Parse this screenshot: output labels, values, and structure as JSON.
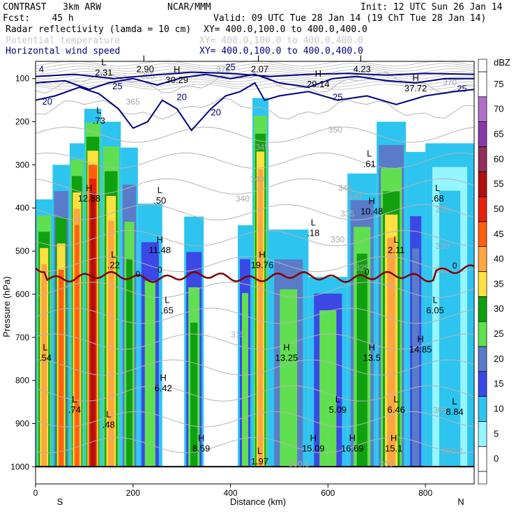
{
  "header": {
    "project": "CONTRAST",
    "model": "3km ARW",
    "org": "NCAR/MMM",
    "init": "Init: 12 UTC Sun 26 Jan 14",
    "fcst_label": "Fcst:",
    "fcst_value": "45 h",
    "valid": "Valid: 09 UTC Tue 28 Jan 14 (19 ChT Tue 28 Jan 14)",
    "fields": [
      {
        "name": "Radar reflectivity (lamda = 10 cm)",
        "xy": "XY= 400.0,100.0 to 400.0,400.0",
        "color": "#000000"
      },
      {
        "name": "Potential temperature",
        "xy": "XY= 400.0,100.0 to 400.0,400.0",
        "color": "#c8c8c8"
      },
      {
        "name": "Horizontal wind speed",
        "xy": "XY= 400.0,100.0 to 400.0,400.0",
        "color": "#000080"
      }
    ]
  },
  "chart_data": {
    "type": "cross-section",
    "title": "CONTRAST 3km ARW cross section",
    "xlabel": "Distance (km)",
    "ylabel": "Pressure (hPa)",
    "xlim": [
      0,
      900
    ],
    "ylim": [
      1040,
      60
    ],
    "x_ticks": [
      0,
      200,
      400,
      600,
      800
    ],
    "y_ticks": [
      100,
      200,
      300,
      400,
      500,
      600,
      700,
      800,
      900,
      1000
    ],
    "x_left_label": "S",
    "x_right_label": "N",
    "colorbar": {
      "unit": "dBZ",
      "levels": [
        0,
        5,
        10,
        15,
        20,
        25,
        30,
        35,
        40,
        45,
        50,
        55,
        60,
        65,
        70,
        75
      ],
      "colors": [
        "#ffffff",
        "#96f5ff",
        "#2ec4f0",
        "#3c48e6",
        "#5a7cc8",
        "#60e050",
        "#10a010",
        "#ffe040",
        "#ffa640",
        "#ff6010",
        "#e82010",
        "#b01010",
        "#90305a",
        "#8a3aa8",
        "#b070c8",
        "#ffffff"
      ]
    },
    "freezing_level_label": "0",
    "theta_contours": [
      {
        "label": "350",
        "x": 615,
        "p": 225
      },
      {
        "label": "345",
        "x": 635,
        "p": 360
      },
      {
        "label": "345",
        "x": 465,
        "p": 265
      },
      {
        "label": "340",
        "x": 455,
        "p": 340
      },
      {
        "label": "340",
        "x": 655,
        "p": 380
      },
      {
        "label": "340",
        "x": 425,
        "p": 385
      },
      {
        "label": "335",
        "x": 640,
        "p": 420
      },
      {
        "label": "335",
        "x": 835,
        "p": 410
      },
      {
        "label": "330",
        "x": 620,
        "p": 480
      },
      {
        "label": "330",
        "x": 835,
        "p": 495
      },
      {
        "label": "325",
        "x": 670,
        "p": 545
      },
      {
        "label": "325",
        "x": 835,
        "p": 550
      },
      {
        "label": "315",
        "x": 415,
        "p": 700
      },
      {
        "label": "305",
        "x": 830,
        "p": 875
      },
      {
        "label": "300.6",
        "x": 540,
        "p": 1000
      },
      {
        "label": "300",
        "x": 720,
        "p": 1000
      },
      {
        "label": "300.2",
        "x": 855,
        "p": 970
      },
      {
        "label": "365",
        "x": 200,
        "p": 160
      },
      {
        "label": "365",
        "x": 230,
        "p": 100
      },
      {
        "label": "375",
        "x": 385,
        "p": 85
      },
      {
        "label": "370",
        "x": 850,
        "p": 115
      }
    ],
    "wind_contours": [
      {
        "label": "20",
        "x": 24,
        "p": 160
      },
      {
        "label": "25",
        "x": 168,
        "p": 125
      },
      {
        "label": "20",
        "x": 300,
        "p": 150
      },
      {
        "label": "20",
        "x": 370,
        "p": 185
      },
      {
        "label": "25",
        "x": 400,
        "p": 80
      },
      {
        "label": "25",
        "x": 620,
        "p": 150
      },
      {
        "label": "25",
        "x": 875,
        "p": 130
      },
      {
        "label": "4",
        "x": 12,
        "p": 85
      }
    ],
    "extrema": [
      {
        "type": "L",
        "value": "2.31",
        "x": 140,
        "p": 88
      },
      {
        "type": "L",
        "value": "2.90",
        "x": 225,
        "p": 80
      },
      {
        "type": "H",
        "value": "30.29",
        "x": 290,
        "p": 105
      },
      {
        "type": "L",
        "value": "2.07",
        "x": 460,
        "p": 80
      },
      {
        "type": "H",
        "value": "29.14",
        "x": 580,
        "p": 115
      },
      {
        "type": "L",
        "value": "4.23",
        "x": 670,
        "p": 80
      },
      {
        "type": "H",
        "value": "37.72",
        "x": 780,
        "p": 125
      },
      {
        "type": "L",
        "value": ".73",
        "x": 130,
        "p": 200
      },
      {
        "type": "H",
        "value": "12.88",
        "x": 110,
        "p": 380
      },
      {
        "type": "L",
        "value": ".50",
        "x": 255,
        "p": 385
      },
      {
        "type": "L",
        "value": ".61",
        "x": 685,
        "p": 300
      },
      {
        "type": "L",
        "value": ".68",
        "x": 825,
        "p": 380
      },
      {
        "type": "H",
        "value": "10.48",
        "x": 690,
        "p": 410
      },
      {
        "type": "L",
        "value": ".18",
        "x": 570,
        "p": 460
      },
      {
        "type": "H",
        "value": "11.48",
        "x": 255,
        "p": 500
      },
      {
        "type": "L",
        "value": ".22",
        "x": 160,
        "p": 535
      },
      {
        "type": "H",
        "value": "19.76",
        "x": 465,
        "p": 535
      },
      {
        "type": "L",
        "value": "2.11",
        "x": 740,
        "p": 500
      },
      {
        "type": "L",
        "value": ".65",
        "x": 270,
        "p": 640
      },
      {
        "type": "L",
        "value": "6.05",
        "x": 820,
        "p": 640
      },
      {
        "type": "L",
        "value": ".54",
        "x": 20,
        "p": 750
      },
      {
        "type": "H",
        "value": "13.25",
        "x": 515,
        "p": 750
      },
      {
        "type": "H",
        "value": "13.5",
        "x": 690,
        "p": 750
      },
      {
        "type": "H",
        "value": "14.85",
        "x": 790,
        "p": 730
      },
      {
        "type": "H",
        "value": "6.42",
        "x": 262,
        "p": 820
      },
      {
        "type": "L",
        "value": ".74",
        "x": 80,
        "p": 870
      },
      {
        "type": "L",
        "value": "5.09",
        "x": 620,
        "p": 870
      },
      {
        "type": "L",
        "value": "6.46",
        "x": 740,
        "p": 870
      },
      {
        "type": "L",
        "value": "8.84",
        "x": 860,
        "p": 875
      },
      {
        "type": "L",
        "value": ".48",
        "x": 150,
        "p": 905
      },
      {
        "type": "H",
        "value": "8.59",
        "x": 340,
        "p": 960
      },
      {
        "type": "H",
        "value": "15.09",
        "x": 570,
        "p": 960
      },
      {
        "type": "H",
        "value": "16.69",
        "x": 650,
        "p": 960
      },
      {
        "type": "H",
        "value": "15.1",
        "x": 735,
        "p": 960
      },
      {
        "type": "L",
        "value": "1.97",
        "x": 460,
        "p": 990
      }
    ],
    "reflectivity_columns": [
      {
        "x0": 0,
        "x1": 35,
        "ptop": 380,
        "core": [
          25,
          30,
          35,
          40
        ],
        "corep": 520
      },
      {
        "x0": 35,
        "x1": 70,
        "ptop": 300,
        "core": [
          20,
          30,
          35,
          45
        ],
        "corep": 560
      },
      {
        "x0": 70,
        "x1": 100,
        "ptop": 250,
        "core": [
          25,
          30,
          35,
          40,
          45
        ],
        "corep": 420
      },
      {
        "x0": 100,
        "x1": 135,
        "ptop": 170,
        "core": [
          25,
          30,
          35,
          45,
          50,
          55
        ],
        "corep": 330
      },
      {
        "x0": 135,
        "x1": 175,
        "ptop": 200,
        "core": [
          25,
          30,
          35,
          40
        ],
        "corep": 430
      },
      {
        "x0": 175,
        "x1": 210,
        "ptop": 260,
        "core": [
          20,
          25,
          30
        ],
        "corep": 560
      },
      {
        "x0": 210,
        "x1": 260,
        "ptop": 390,
        "core": [
          15,
          25
        ],
        "corep": 620
      },
      {
        "x0": 305,
        "x1": 345,
        "ptop": 420,
        "core": [
          15,
          25,
          30
        ],
        "corep": 720
      },
      {
        "x0": 415,
        "x1": 445,
        "ptop": 440,
        "core": [
          15,
          25
        ],
        "corep": 640
      },
      {
        "x0": 445,
        "x1": 478,
        "ptop": 145,
        "core": [
          25,
          30,
          35,
          40
        ],
        "corep": 280
      },
      {
        "x0": 478,
        "x1": 560,
        "ptop": 450,
        "core": [
          20,
          25
        ],
        "corep": 620
      },
      {
        "x0": 560,
        "x1": 640,
        "ptop": 560,
        "core": [
          15,
          25
        ],
        "corep": 640
      },
      {
        "x0": 640,
        "x1": 700,
        "ptop": 320,
        "core": [
          20,
          25,
          30
        ],
        "corep": 520
      },
      {
        "x0": 700,
        "x1": 760,
        "ptop": 200,
        "core": [
          20,
          25,
          30,
          35,
          40
        ],
        "corep": 470
      },
      {
        "x0": 760,
        "x1": 800,
        "ptop": 270,
        "core": [
          10,
          15,
          20
        ],
        "corep": 520
      },
      {
        "x0": 800,
        "x1": 900,
        "ptop": 250,
        "core": [
          5,
          10
        ],
        "corep": 350
      }
    ]
  }
}
